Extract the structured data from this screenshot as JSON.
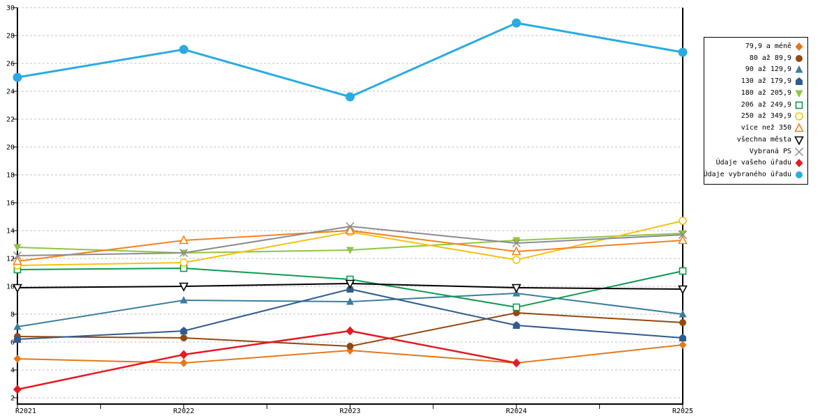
{
  "chart_data": {
    "type": "line",
    "title": "",
    "xlabel": "",
    "ylabel": "",
    "ylim": [
      2,
      30
    ],
    "y_ticks": [
      2,
      4,
      6,
      8,
      10,
      12,
      14,
      16,
      18,
      20,
      22,
      24,
      26,
      28,
      30
    ],
    "x_categories": [
      "R2021",
      "R2022",
      "R2023",
      "R2024",
      "R2025"
    ],
    "grid": "horizontal-dashed",
    "grid_color": "#C3C3C3",
    "axis_color": "#000000",
    "background": "#FFFFFF",
    "legend_position": "right",
    "series": [
      {
        "key": "79-and-less",
        "name": "79,9 a méně",
        "marker": "diamond",
        "style": "solid",
        "color": "#E3791B",
        "line_width": 2,
        "values": [
          4.8,
          4.5,
          5.4,
          4.5,
          5.8
        ]
      },
      {
        "key": "80-89",
        "name": "80 až 89,9",
        "marker": "circle",
        "style": "solid",
        "color": "#94480F",
        "line_width": 2,
        "values": [
          6.4,
          6.3,
          5.7,
          8.1,
          7.4
        ]
      },
      {
        "key": "90-129",
        "name": "90 až 129,9",
        "marker": "triangle-up",
        "style": "solid",
        "color": "#3B7D9E",
        "line_width": 2,
        "values": [
          7.1,
          9.0,
          8.9,
          9.5,
          8.0
        ]
      },
      {
        "key": "130-179",
        "name": "130 až 179,9",
        "marker": "pentagon",
        "style": "solid",
        "color": "#2F5B8F",
        "line_width": 2,
        "values": [
          6.2,
          6.8,
          9.8,
          7.2,
          6.3
        ]
      },
      {
        "key": "180-205",
        "name": "180 až 205,9",
        "marker": "triangle-down",
        "style": "solid",
        "color": "#8DC63F",
        "line_width": 2,
        "values": [
          12.8,
          12.4,
          12.6,
          13.3,
          13.8
        ]
      },
      {
        "key": "206-249",
        "name": "206 až 249,9",
        "marker": "square",
        "style": "open",
        "color": "#0C9B4D",
        "line_width": 2,
        "values": [
          11.2,
          11.3,
          10.5,
          8.5,
          11.1
        ]
      },
      {
        "key": "250-349",
        "name": "250 až 349,9",
        "marker": "circle",
        "style": "open",
        "color": "#F5C20D",
        "line_width": 2,
        "values": [
          11.5,
          11.7,
          13.9,
          11.9,
          14.7
        ]
      },
      {
        "key": "over-350",
        "name": "více než 350",
        "marker": "triangle-up",
        "style": "open",
        "color": "#F5821E",
        "line_width": 2,
        "values": [
          11.8,
          13.3,
          14.0,
          12.5,
          13.3
        ]
      },
      {
        "key": "all-cities",
        "name": "všechna města",
        "marker": "triangle-down",
        "style": "open",
        "color": "#000000",
        "line_width": 2,
        "values": [
          9.9,
          10.0,
          10.2,
          9.9,
          9.8
        ]
      },
      {
        "key": "selected-ps",
        "name": "Vybraná PS",
        "marker": "x",
        "style": "open",
        "color": "#8C8C8C",
        "line_width": 2,
        "values": [
          12.2,
          12.4,
          14.3,
          13.1,
          13.7
        ]
      },
      {
        "key": "your-office",
        "name": "Údaje vašeho úřadu",
        "marker": "diamond",
        "style": "solid",
        "color": "#E51A23",
        "line_width": 2.5,
        "marker_size": 6,
        "values": [
          2.6,
          5.1,
          6.8,
          4.5,
          null
        ]
      },
      {
        "key": "selected-office",
        "name": "Údaje vybraného úřadu",
        "marker": "circle",
        "style": "solid",
        "color": "#29ABE2",
        "line_width": 3,
        "marker_size": 6.5,
        "values": [
          25.0,
          27.0,
          23.6,
          28.9,
          26.8
        ]
      }
    ]
  }
}
